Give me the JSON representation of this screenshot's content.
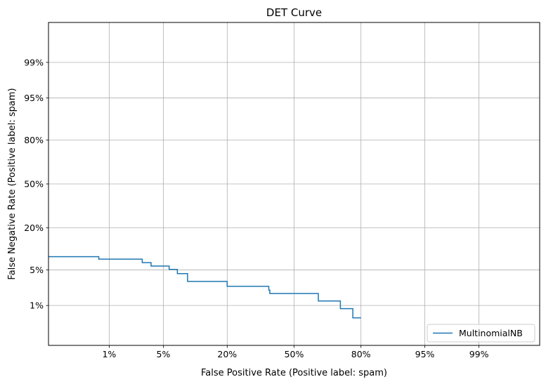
{
  "chart_data": {
    "type": "line",
    "title": "DET Curve",
    "xlabel": "False Positive Rate (Positive label: spam)",
    "ylabel": "False Negative Rate (Positive label: spam)",
    "scale": "probit",
    "xlim": [
      0.001,
      0.999
    ],
    "ylim": [
      0.001,
      0.999
    ],
    "grid": true,
    "x_ticks": [
      {
        "value": 0.01,
        "label": "1%"
      },
      {
        "value": 0.05,
        "label": "5%"
      },
      {
        "value": 0.2,
        "label": "20%"
      },
      {
        "value": 0.5,
        "label": "50%"
      },
      {
        "value": 0.8,
        "label": "80%"
      },
      {
        "value": 0.95,
        "label": "95%"
      },
      {
        "value": 0.99,
        "label": "99%"
      }
    ],
    "y_ticks": [
      {
        "value": 0.01,
        "label": "1%"
      },
      {
        "value": 0.05,
        "label": "5%"
      },
      {
        "value": 0.2,
        "label": "20%"
      },
      {
        "value": 0.5,
        "label": "50%"
      },
      {
        "value": 0.8,
        "label": "80%"
      },
      {
        "value": 0.95,
        "label": "95%"
      },
      {
        "value": 0.99,
        "label": "99%"
      }
    ],
    "legend": {
      "placement": "lower-right"
    },
    "series": [
      {
        "name": "MultinomialNB",
        "color": "#1f77b4",
        "step": true,
        "x": [
          0.001,
          0.007,
          0.007,
          0.028,
          0.028,
          0.036,
          0.036,
          0.058,
          0.058,
          0.071,
          0.071,
          0.09,
          0.09,
          0.2,
          0.2,
          0.375,
          0.375,
          0.38,
          0.38,
          0.62,
          0.62,
          0.72,
          0.72,
          0.77,
          0.77,
          0.8
        ],
        "y": [
          0.082,
          0.082,
          0.075,
          0.075,
          0.066,
          0.066,
          0.058,
          0.058,
          0.051,
          0.051,
          0.043,
          0.043,
          0.031,
          0.031,
          0.025,
          0.025,
          0.021,
          0.021,
          0.018,
          0.018,
          0.0125,
          0.0125,
          0.0085,
          0.0085,
          0.0052,
          0.0052
        ]
      }
    ]
  }
}
